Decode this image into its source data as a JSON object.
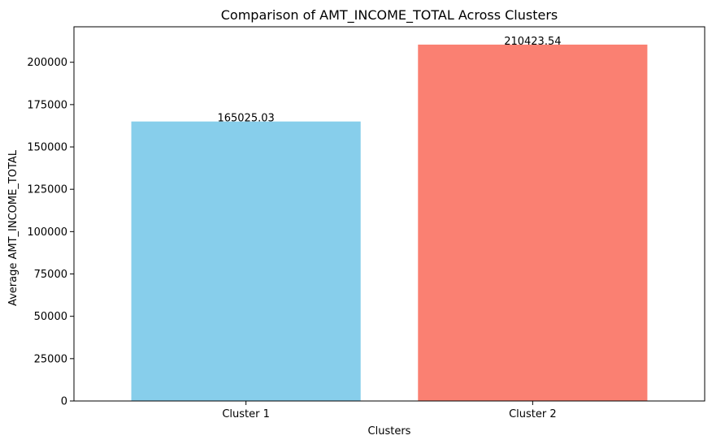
{
  "chart_data": {
    "type": "bar",
    "title": "Comparison of AMT_INCOME_TOTAL Across Clusters",
    "xlabel": "Clusters",
    "ylabel": "Average AMT_INCOME_TOTAL",
    "categories": [
      "Cluster 1",
      "Cluster 2"
    ],
    "values": [
      165025.03,
      210423.54
    ],
    "value_labels": [
      "165025.03",
      "210423.54"
    ],
    "colors": [
      "#87ceeb",
      "#fa8072"
    ],
    "ylim": [
      0,
      220945
    ],
    "yticks": [
      0,
      25000,
      50000,
      75000,
      100000,
      125000,
      150000,
      175000,
      200000
    ],
    "ytick_labels": [
      "0",
      "25000",
      "50000",
      "75000",
      "100000",
      "125000",
      "150000",
      "175000",
      "200000"
    ],
    "grid": false,
    "legend": "none"
  }
}
